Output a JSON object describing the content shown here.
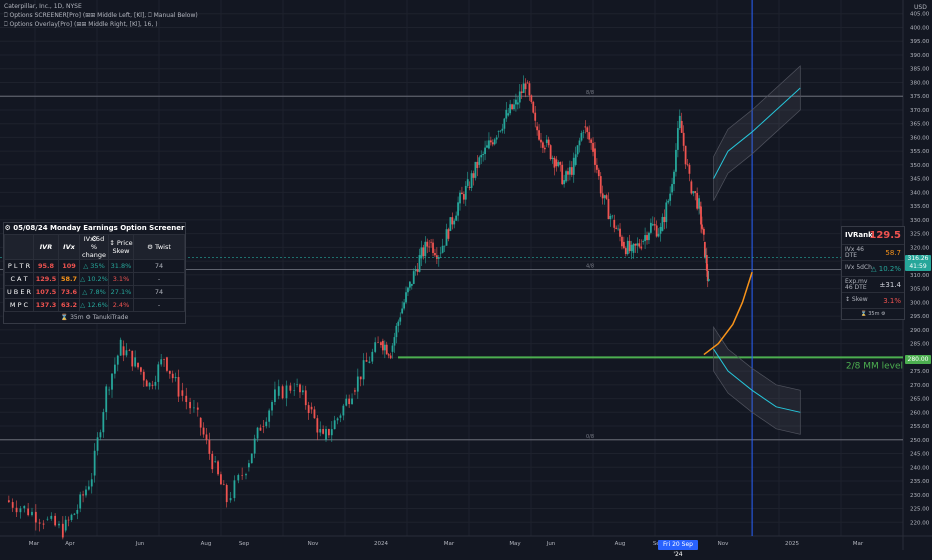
{
  "header": {
    "symbol_line": "Caterpillar, Inc., 1D, NYSE",
    "indicator_1": "⎕ Options SCREENER[Pro] (⊞⊞ Middle Left, [Kl], ⎕ Manual Below)",
    "indicator_2": "⎕ Options Overlay[Pro] (⊞⊞ Middle Right, [Kl], 16, )"
  },
  "currency": "USD",
  "colors": {
    "up": "#26a69a",
    "down": "#ef5350",
    "orange": "#f7931a",
    "green": "#4caf50",
    "blue": "#2962ff",
    "cyan": "#26c6da"
  },
  "screener": {
    "title": "⚙ 05/08/24 Monday Earnings Option Screener ⚙",
    "columns": [
      "",
      "IVR",
      "IVx",
      "IVx 5d % change",
      "↕ Price Skew",
      "⚙ Twist"
    ],
    "rows": [
      {
        "ticker": "P L T R",
        "ivr": "95.8",
        "ivx": "109",
        "chg": "△ 35%",
        "skew": "31.8%",
        "twist": "74"
      },
      {
        "ticker": "C A T",
        "ivr": "129.5",
        "ivx": "58.7",
        "chg": "△ 10.2%",
        "skew": "3.1%",
        "twist": "-"
      },
      {
        "ticker": "U B E R",
        "ivr": "107.5",
        "ivx": "73.6",
        "chg": "△ 7.8%",
        "skew": "27.1%",
        "twist": "74"
      },
      {
        "ticker": "M P C",
        "ivr": "137.3",
        "ivx": "63.2",
        "chg": "△ 12.6%",
        "skew": "2.4%",
        "twist": "-"
      }
    ],
    "footer": "⌛ 35m ⚙ TanukiTrade"
  },
  "ivr_panel": {
    "title": "IVRank",
    "value": "129.5",
    "rows": [
      {
        "label": "IVx 46 DTE",
        "value": "58.7"
      },
      {
        "label": "IVx 5dCh.",
        "value": "△ 10.2%"
      },
      {
        "label": "Exp.mv 46 DTE",
        "value": "±31.4"
      },
      {
        "label": "↕ Skew",
        "value": "3.1%"
      }
    ],
    "footer": "⌛ 35m ⚙"
  },
  "annotations": {
    "mm_level": "2/8 MM level",
    "fib_top": "8/8",
    "fib_mid": "4/8",
    "fib_bot": "0/8"
  },
  "price_flags": {
    "current": "316.26",
    "countdown": "41:59",
    "level": "280.00"
  },
  "date_flag": "Fri 20 Sep '24",
  "chart_data": {
    "type": "candlestick",
    "y_axis": {
      "min": 215,
      "max": 410,
      "ticks": [
        220,
        225,
        230,
        235,
        240,
        245,
        250,
        255,
        260,
        265,
        270,
        275,
        280,
        285,
        290,
        295,
        300,
        305,
        310,
        315,
        320,
        325,
        330,
        335,
        340,
        345,
        350,
        355,
        360,
        365,
        370,
        375,
        380,
        385,
        390,
        395,
        400,
        405
      ]
    },
    "x_labels": [
      "Mar",
      "Apr",
      "Jun",
      "Aug",
      "Sep",
      "Nov",
      "2024",
      "Mar",
      "May",
      "Jun",
      "Aug",
      "Sep",
      "Nov",
      "2025",
      "Mar"
    ],
    "price_path": [
      [
        0,
        228
      ],
      [
        0.04,
        225
      ],
      [
        0.08,
        221
      ],
      [
        0.12,
        217
      ],
      [
        0.15,
        225
      ],
      [
        0.18,
        237
      ],
      [
        0.21,
        268
      ],
      [
        0.24,
        284
      ],
      [
        0.27,
        278
      ],
      [
        0.3,
        270
      ],
      [
        0.33,
        280
      ],
      [
        0.36,
        268
      ],
      [
        0.4,
        258
      ],
      [
        0.43,
        242
      ],
      [
        0.46,
        228
      ],
      [
        0.5,
        240
      ],
      [
        0.53,
        255
      ],
      [
        0.56,
        266
      ],
      [
        0.6,
        270
      ],
      [
        0.63,
        262
      ],
      [
        0.66,
        250
      ],
      [
        0.69,
        258
      ],
      [
        0.72,
        268
      ],
      [
        0.75,
        278
      ],
      [
        0.78,
        286
      ],
      [
        0.8,
        282
      ],
      [
        0.82,
        296
      ],
      [
        0.84,
        306
      ],
      [
        0.86,
        316
      ],
      [
        0.88,
        322
      ],
      [
        0.9,
        318
      ],
      [
        0.92,
        326
      ],
      [
        0.94,
        336
      ],
      [
        0.96,
        342
      ],
      [
        0.98,
        350
      ],
      [
        1.0,
        356
      ],
      [
        1.02,
        362
      ],
      [
        1.04,
        368
      ],
      [
        1.06,
        372
      ],
      [
        1.08,
        380
      ],
      [
        1.1,
        364
      ],
      [
        1.12,
        358
      ],
      [
        1.14,
        352
      ],
      [
        1.16,
        344
      ],
      [
        1.18,
        350
      ],
      [
        1.2,
        364
      ],
      [
        1.22,
        356
      ],
      [
        1.24,
        338
      ],
      [
        1.26,
        330
      ],
      [
        1.28,
        322
      ],
      [
        1.3,
        318
      ],
      [
        1.32,
        322
      ],
      [
        1.34,
        328
      ],
      [
        1.36,
        326
      ],
      [
        1.38,
        340
      ],
      [
        1.4,
        366
      ],
      [
        1.42,
        344
      ],
      [
        1.44,
        335
      ],
      [
        1.45,
        322
      ],
      [
        1.46,
        306
      ]
    ],
    "levels": {
      "mm_2_8": 280,
      "top_8_8": 375,
      "mid_4_8": 312,
      "bot_0_8": 250
    },
    "projection_upper": [
      [
        1.47,
        345
      ],
      [
        1.5,
        355
      ],
      [
        1.55,
        362
      ],
      [
        1.6,
        370
      ],
      [
        1.65,
        378
      ]
    ],
    "projection_lower": [
      [
        1.47,
        283
      ],
      [
        1.5,
        275
      ],
      [
        1.55,
        268
      ],
      [
        1.6,
        262
      ],
      [
        1.65,
        260
      ]
    ],
    "orange_curve": [
      [
        1.45,
        281
      ],
      [
        1.48,
        285
      ],
      [
        1.51,
        292
      ],
      [
        1.53,
        300
      ],
      [
        1.55,
        311
      ]
    ],
    "current_price": 316.26,
    "expiry_line_x": 1.55
  }
}
